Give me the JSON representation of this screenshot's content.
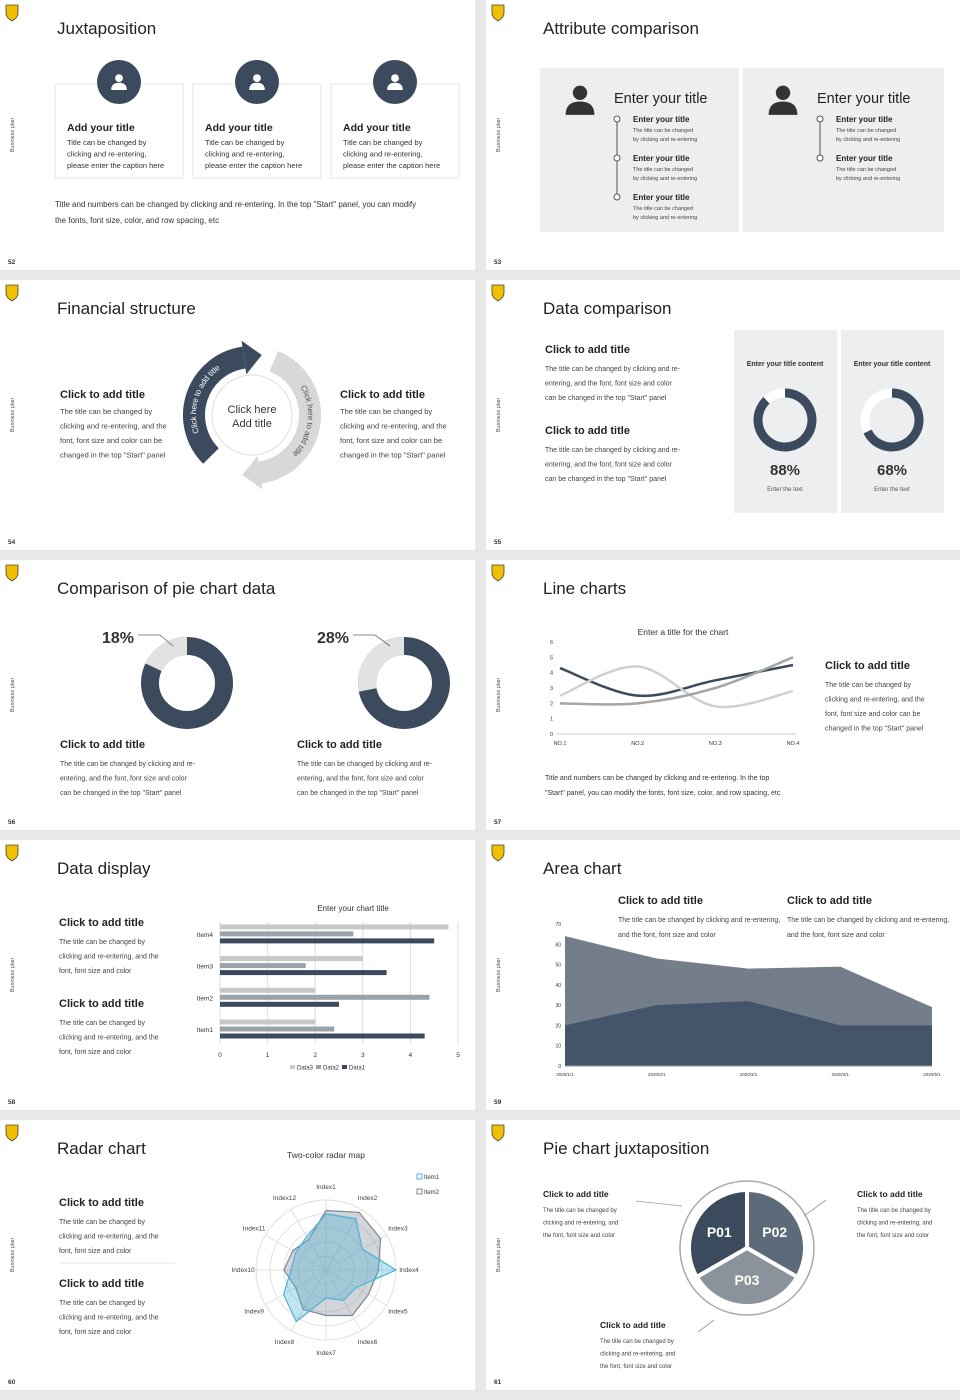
{
  "side_label": "Business plan",
  "slides": [
    {
      "number": "52",
      "title": "Juxtaposition",
      "cards": [
        {
          "title": "Add your title",
          "text": [
            "Title can be changed by",
            "clicking and re-entering,",
            "please enter the caption here"
          ]
        },
        {
          "title": "Add your title",
          "text": [
            "Title can be changed by",
            "clicking and re-entering,",
            "please enter the caption here"
          ]
        },
        {
          "title": "Add your title",
          "text": [
            "Title can be changed by",
            "clicking and re-entering,",
            "please enter the caption here"
          ]
        }
      ],
      "text": [
        "Title and numbers can be changed by clicking and re-entering. In the top \"Start\" panel, you can modify",
        "the fonts, font size, color, and row spacing, etc"
      ]
    },
    {
      "number": "53",
      "title": "Attribute comparison",
      "panels": [
        {
          "title": "Enter your title",
          "items": [
            {
              "title": "Enter your title",
              "text": [
                "The title can be changed",
                "by clicking and re-entering"
              ]
            },
            {
              "title": "Enter your title",
              "text": [
                "The title can be changed",
                "by clicking and re-entering"
              ]
            },
            {
              "title": "Enter your title",
              "text": [
                "The title can be changed",
                "by clicking and re-entering"
              ]
            }
          ]
        },
        {
          "title": "Enter your title",
          "items": [
            {
              "title": "Enter your title",
              "text": [
                "The title can be changed",
                "by clicking and re-entering"
              ]
            },
            {
              "title": "Enter your title",
              "text": [
                "The title can be changed",
                "by clicking and re-entering"
              ]
            }
          ]
        }
      ]
    },
    {
      "number": "54",
      "title": "Financial structure",
      "blocks": [
        {
          "title": "Click to add title",
          "text": [
            "The title can be changed by",
            "clicking and re-entering, and the",
            "font, font size and color can be",
            "changed in the top \"Start\" panel"
          ]
        },
        {
          "title": "Click to add title",
          "text": [
            "The title can be changed by",
            "clicking and re-entering, and the",
            "font, font size and color can be",
            "changed in the top \"Start\" panel"
          ]
        }
      ],
      "cycle": {
        "center": [
          "Click here",
          "Add title"
        ],
        "arcs": [
          "Click here to add title",
          "Click here to add title"
        ]
      }
    },
    {
      "number": "55",
      "title": "Data comparison",
      "blocks": [
        {
          "title": "Click to add title",
          "text": [
            "The title can be changed by clicking and re-",
            "entering, and the font, font size and color",
            "can be changed in the top \"Start\" panel"
          ]
        },
        {
          "title": "Click to add title",
          "text": [
            "The title can be changed by clicking and re-",
            "entering, and the font, font size and color",
            "can be changed in the top \"Start\" panel"
          ]
        }
      ],
      "panels": [
        {
          "title": "Enter your title content",
          "value": 88,
          "label": "88%",
          "caption": "Enter the text"
        },
        {
          "title": "Enter your title content",
          "value": 68,
          "label": "68%",
          "caption": "Enter the text"
        }
      ]
    },
    {
      "number": "56",
      "title": "Comparison of pie chart data",
      "donuts": [
        {
          "value": 18,
          "label": "18%"
        },
        {
          "value": 28,
          "label": "28%"
        }
      ],
      "blocks": [
        {
          "title": "Click to add title",
          "text": [
            "The title can be changed by clicking and re-",
            "entering, and the font, font size and color",
            "can be changed in the top \"Start\" panel"
          ]
        },
        {
          "title": "Click to add title",
          "text": [
            "The title can be changed by clicking and re-",
            "entering, and the font, font size and color",
            "can be changed in the top \"Start\" panel"
          ]
        }
      ]
    },
    {
      "number": "57",
      "title": "Line charts",
      "chart_data": {
        "type": "line",
        "title": "Enter a title for the chart",
        "categories": [
          "NO.1",
          "NO.2",
          "NO.3",
          "NO.4"
        ],
        "series": [
          {
            "color": "#3b4a5c",
            "values": [
              4.3,
              2.5,
              3.5,
              4.5
            ]
          },
          {
            "color": "#d0d0d0",
            "values": [
              2.5,
              4.4,
              1.8,
              2.8
            ]
          },
          {
            "color": "#a6a6a6",
            "values": [
              2.0,
              2.0,
              3.0,
              5.0
            ]
          }
        ],
        "ylim": [
          0,
          6
        ],
        "yticks": [
          0,
          1,
          2,
          3,
          4,
          5,
          6
        ]
      },
      "block": {
        "title": "Click to add title",
        "text": [
          "The title can be changed by",
          "clicking and re-entering, and the",
          "font, font size and color can be",
          "changed in the top \"Start\" panel"
        ]
      },
      "text": [
        "Title and numbers can be changed by clicking and re-entering. In the top",
        "\"Start\" panel, you can modify the fonts, font size, color, and row spacing, etc"
      ]
    },
    {
      "number": "58",
      "title": "Data display",
      "blocks": [
        {
          "title": "Click to add title",
          "text": [
            "The title can be changed by",
            "clicking and re-entering, and the",
            "font, font size and color"
          ]
        },
        {
          "title": "Click to add title",
          "text": [
            "The title can be changed by",
            "clicking and re-entering, and the",
            "font, font size and color"
          ]
        }
      ],
      "chart_data": {
        "type": "bar",
        "title": "Enter your chart title",
        "categories": [
          "Item1",
          "Item2",
          "Item3",
          "Item4"
        ],
        "series": [
          {
            "name": "Data1",
            "color": "#3b4a5c",
            "values": [
              4.3,
              2.5,
              3.5,
              4.5
            ]
          },
          {
            "name": "Data2",
            "color": "#9ba2aa",
            "values": [
              2.4,
              4.4,
              1.8,
              2.8
            ]
          },
          {
            "name": "Data3",
            "color": "#c8c8c8",
            "values": [
              2.0,
              2.0,
              3.0,
              4.8
            ]
          }
        ],
        "xlim": [
          0,
          5
        ],
        "xticks": [
          0,
          1,
          2,
          3,
          4,
          5
        ],
        "grid": true
      }
    },
    {
      "number": "59",
      "title": "Area chart",
      "blocks": [
        {
          "title": "Click to add title",
          "text": [
            "The title can be changed by clicking and re-entering,",
            "and the font, font size and color"
          ]
        },
        {
          "title": "Click to add title",
          "text": [
            "The title can be changed by clicking and re-entering,",
            "and the font, font size and color"
          ]
        }
      ],
      "chart_data": {
        "type": "area",
        "categories": [
          "2020/1/1",
          "2020/2/1",
          "2020/3/1",
          "2020/4/1",
          "2020/5/1"
        ],
        "series": [
          {
            "color": "#737e8a",
            "values": [
              64,
              53,
              48,
              49,
              29
            ]
          },
          {
            "color": "#44546a",
            "values": [
              20,
              30,
              32,
              20,
              20
            ]
          }
        ],
        "ylim": [
          0,
          70
        ],
        "yticks": [
          0,
          10,
          20,
          30,
          40,
          50,
          60,
          70
        ]
      }
    },
    {
      "number": "60",
      "title": "Radar chart",
      "blocks": [
        {
          "title": "Click to add title",
          "text": [
            "The title can be changed by",
            "clicking and re-entering, and the",
            "font, font size and color"
          ]
        },
        {
          "title": "Click to add title",
          "text": [
            "The title can be changed by",
            "clicking and re-entering, and the",
            "font, font size and color"
          ]
        }
      ],
      "chart_data": {
        "type": "radar",
        "title": "Two-color radar map",
        "categories": [
          "Index1",
          "Index2",
          "Index3",
          "Index4",
          "Index5",
          "Index6",
          "Index7",
          "Index8",
          "Index9",
          "Index10",
          "Index11",
          "Index12"
        ],
        "series": [
          {
            "name": "Item1",
            "color": "#4bb3d8",
            "values": [
              80,
              85,
              60,
              100,
              50,
              50,
              40,
              85,
              70,
              50,
              50,
              55
            ]
          },
          {
            "name": "Item2",
            "color": "#7d8791",
            "values": [
              85,
              95,
              90,
              75,
              70,
              75,
              65,
              65,
              50,
              60,
              55,
              50
            ]
          }
        ],
        "rlim": [
          0,
          100
        ]
      }
    },
    {
      "number": "61",
      "title": "Pie chart juxtaposition",
      "segments": [
        "P01",
        "P02",
        "P03"
      ],
      "blocks": [
        {
          "title": "Click to add title",
          "text": [
            "The title can be changed by",
            "clicking and re-entering, and",
            "the font, font size and color"
          ]
        },
        {
          "title": "Click to add title",
          "text": [
            "The title can be changed by",
            "clicking and re-entering, and",
            "the font, font size and color"
          ]
        },
        {
          "title": "Click to add title",
          "text": [
            "The title can be changed by",
            "clicking and re-entering, and",
            "the font, font size and color"
          ]
        }
      ]
    }
  ]
}
